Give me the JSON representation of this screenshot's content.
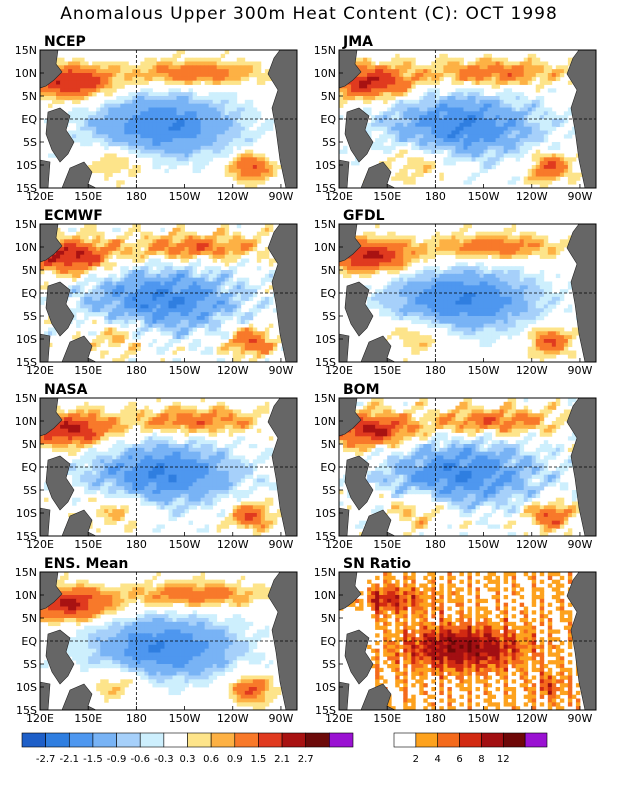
{
  "title": "Anomalous Upper 300m Heat Content (C): OCT 1998",
  "x_ticks": [
    "120E",
    "150E",
    "180",
    "150W",
    "120W",
    "90W"
  ],
  "y_ticks": [
    "15N",
    "10N",
    "5N",
    "EQ",
    "5S",
    "10S",
    "15S"
  ],
  "panels": [
    {
      "label": "NCEP",
      "kind": "anomaly"
    },
    {
      "label": "JMA",
      "kind": "anomaly"
    },
    {
      "label": "ECMWF",
      "kind": "anomaly"
    },
    {
      "label": "GFDL",
      "kind": "anomaly"
    },
    {
      "label": "NASA",
      "kind": "anomaly"
    },
    {
      "label": "BOM",
      "kind": "anomaly"
    },
    {
      "label": "ENS. Mean",
      "kind": "anomaly"
    },
    {
      "label": "SN Ratio",
      "kind": "snr"
    }
  ],
  "colorbar_anomaly": {
    "labels": [
      "-2.7",
      "-2.1",
      "-1.5",
      "-0.9",
      "-0.6",
      "-0.3",
      "0.3",
      "0.6",
      "0.9",
      "1.5",
      "2.1",
      "2.7"
    ],
    "colors": [
      "#1e5fc8",
      "#2f7ee0",
      "#4e97ef",
      "#78b3f5",
      "#a6d0fa",
      "#cdeffd",
      "#ffffff",
      "#fde48a",
      "#fdb144",
      "#f8792a",
      "#e03a1f",
      "#a81212",
      "#6c0a0a",
      "#9a12d2"
    ]
  },
  "colorbar_snr": {
    "labels": [
      "2",
      "4",
      "6",
      "8",
      "12"
    ],
    "colors": [
      "#ffffff",
      "#fda21e",
      "#f46a1c",
      "#d22a12",
      "#a20f12",
      "#6e0808",
      "#9a12d2"
    ]
  },
  "chart_data": {
    "type": "heatmap",
    "title": "Anomalous Upper 300m Heat Content (C): OCT 1998",
    "x_range": [
      "120E",
      "80W"
    ],
    "y_range": [
      "15S",
      "15N"
    ],
    "panels": [
      "NCEP",
      "JMA",
      "ECMWF",
      "GFDL",
      "NASA",
      "BOM",
      "ENS. Mean",
      "SN Ratio"
    ],
    "anomaly_levels": [
      -2.7,
      -2.1,
      -1.5,
      -0.9,
      -0.6,
      -0.3,
      0.3,
      0.6,
      0.9,
      1.5,
      2.1,
      2.7
    ],
    "snr_levels": [
      2,
      4,
      6,
      8,
      12
    ]
  }
}
